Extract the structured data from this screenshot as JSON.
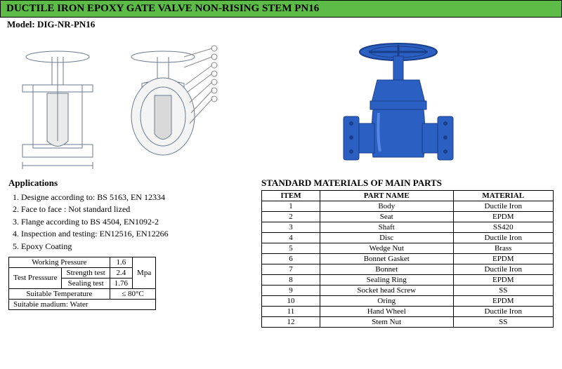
{
  "header": {
    "title": "DUCTILE IRON EPOXY GATE VALVE NON-RISING STEM PN16",
    "model_label": "Model: ",
    "model_value": "DIG-NR-PN16"
  },
  "applications": {
    "title": "Applications",
    "items": [
      "1. Designe according to:  BS 5163, EN 12334",
      "2. Face to face : Not standard lized",
      "3. Flange according to BS 4504, EN1092-2",
      "4. Inspection and testing: EN12516, EN12266",
      "5. Epoxy Coating"
    ]
  },
  "specs": {
    "rows": [
      [
        "Working Pressure",
        "",
        "1.6",
        ""
      ],
      [
        "Test",
        "Strength test",
        "2.4",
        "Mpa"
      ],
      [
        "Presssure",
        "Sealing test",
        "1.76",
        ""
      ],
      [
        "Suitable Temperature",
        "",
        "≤ 80°C",
        ""
      ],
      [
        "Suitabie madium: Water",
        "",
        "",
        ""
      ]
    ],
    "working_pressure_label": "Working Pressure",
    "working_pressure_value": "1.6",
    "test_label": "Test Presssure",
    "strength_label": "Strength test",
    "strength_value": "2.4",
    "sealing_label": "Sealing test",
    "sealing_value": "1.76",
    "unit": "Mpa",
    "temp_label": "Suitable Temperature",
    "temp_value": "≤ 80°C",
    "medium": "Suitabie madium: Water"
  },
  "materials": {
    "title": "STANDARD MATERIALS OF MAIN PARTS",
    "headers": [
      "ITEM",
      "PART NAME",
      "MATERIAL"
    ],
    "rows": [
      [
        "1",
        "Body",
        "Ductile Iron"
      ],
      [
        "2",
        "Seat",
        "EPDM"
      ],
      [
        "3",
        "Shaft",
        "SS420"
      ],
      [
        "4",
        "Disc",
        "Ductile Iron"
      ],
      [
        "5",
        "Wedge Nut",
        "Brass"
      ],
      [
        "6",
        "Bonnet Gasket",
        "EPDM"
      ],
      [
        "7",
        "Bonnet",
        "Ductile Iron"
      ],
      [
        "8",
        "Sealing Ring",
        "EPDM"
      ],
      [
        "9",
        "Socket head Screw",
        "SS"
      ],
      [
        "10",
        "Oring",
        "EPDM"
      ],
      [
        "11",
        "Hand Wheel",
        "Ductile Iron"
      ],
      [
        "12",
        "Stem Nut",
        "SS"
      ]
    ]
  },
  "colors": {
    "titlebar_bg": "#5dbb47",
    "valve_blue": "#2b5fc1",
    "valve_blue_dark": "#1a3f8a",
    "diagram_line": "#6b7a8f"
  }
}
